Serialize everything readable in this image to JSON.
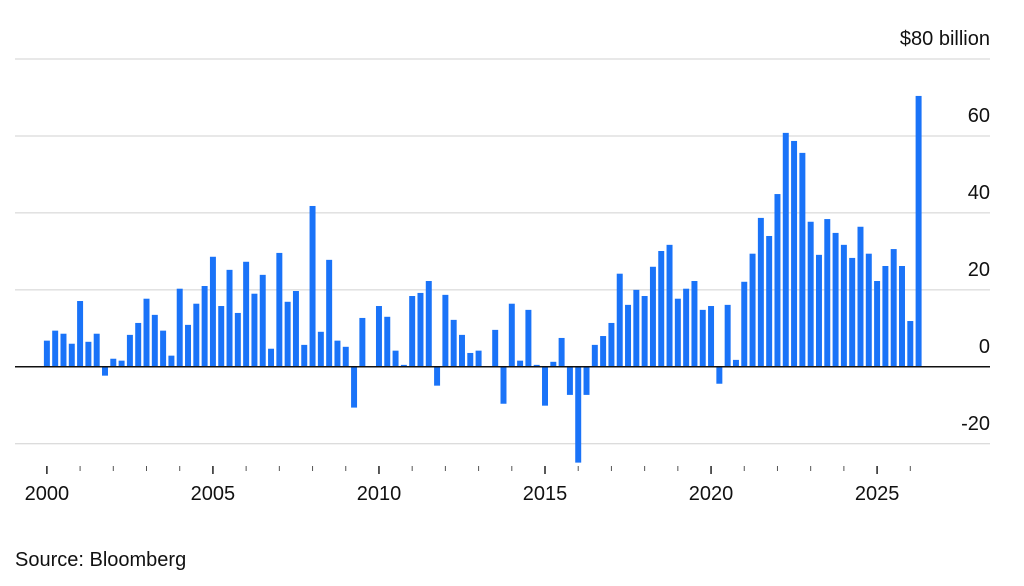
{
  "chart_data": {
    "type": "bar",
    "x": [
      2000,
      2000.25,
      2000.5,
      2000.75,
      2001,
      2001.25,
      2001.5,
      2001.75,
      2002,
      2002.25,
      2002.5,
      2002.75,
      2003,
      2003.25,
      2003.5,
      2003.75,
      2004,
      2004.25,
      2004.5,
      2004.75,
      2005,
      2005.25,
      2005.5,
      2005.75,
      2006,
      2006.25,
      2006.5,
      2006.75,
      2007,
      2007.25,
      2007.5,
      2007.75,
      2008,
      2008.25,
      2008.5,
      2008.75,
      2009,
      2009.25,
      2009.5,
      2009.75,
      2010,
      2010.25,
      2010.5,
      2010.75,
      2011,
      2011.25,
      2011.5,
      2011.75,
      2012,
      2012.25,
      2012.5,
      2012.75,
      2013,
      2013.25,
      2013.5,
      2013.75,
      2014,
      2014.25,
      2014.5,
      2014.75,
      2015,
      2015.25,
      2015.5,
      2015.75,
      2016,
      2016.25,
      2016.5,
      2016.75,
      2017,
      2017.25,
      2017.5,
      2017.75,
      2018,
      2018.25,
      2018.5,
      2018.75,
      2019,
      2019.25,
      2019.5,
      2019.75,
      2020,
      2020.25,
      2020.5,
      2020.75,
      2021,
      2021.25,
      2021.5,
      2021.75,
      2022,
      2022.25,
      2022.5,
      2022.75,
      2023,
      2023.25,
      2023.5,
      2023.75,
      2024,
      2024.25,
      2024.5,
      2024.75,
      2025,
      2025.25,
      2025.5,
      2025.75,
      2026,
      2026.25
    ],
    "values": [
      6.8,
      9.4,
      8.6,
      6,
      17.1,
      6.5,
      8.6,
      -2.3,
      2.1,
      1.6,
      8.3,
      11.4,
      17.7,
      13.5,
      9.4,
      2.9,
      20.3,
      10.9,
      16.4,
      21,
      28.6,
      15.8,
      25.2,
      14,
      27.3,
      19,
      23.9,
      4.7,
      29.6,
      16.9,
      19.7,
      5.7,
      41.8,
      9.1,
      27.8,
      6.8,
      5.2,
      -10.6,
      12.7,
      0,
      15.8,
      13,
      4.2,
      0.5,
      18.4,
      19.2,
      22.3,
      -4.9,
      18.7,
      12.2,
      8.3,
      3.6,
      4.2,
      0,
      9.6,
      -9.6,
      16.4,
      1.6,
      14.8,
      0.5,
      -10.1,
      1.3,
      7.5,
      -7.3,
      -24.9,
      -7.3,
      5.7,
      8,
      11.4,
      24.2,
      16.1,
      20,
      18.4,
      26,
      30.1,
      31.7,
      17.7,
      20.3,
      22.3,
      14.8,
      15.8,
      -4.4,
      16.1,
      1.8,
      22.1,
      29.4,
      38.7,
      34,
      44.9,
      60.8,
      58.7,
      55.6,
      37.7,
      29.1,
      38.4,
      34.8,
      31.7,
      28.3,
      36.4,
      29.4,
      22.3,
      26.2,
      30.6,
      26.2,
      11.9,
      70.4
    ],
    "color": "#1a73f8",
    "xlim": [
      1999.04,
      2028.4
    ],
    "xticks": [
      2000,
      2005,
      2010,
      2015,
      2020,
      2025
    ],
    "xminor_ticks": [
      2001,
      2002,
      2003,
      2004,
      2006,
      2007,
      2008,
      2009,
      2011,
      2012,
      2013,
      2014,
      2016,
      2017,
      2018,
      2019,
      2021,
      2022,
      2023,
      2024,
      2026
    ],
    "ylim": [
      -25,
      80
    ],
    "yticks": [
      -20,
      0,
      20,
      40,
      60,
      {
        "value": 80,
        "label": "$80 billion"
      }
    ],
    "grid": true,
    "source": "Source: Bloomberg"
  }
}
